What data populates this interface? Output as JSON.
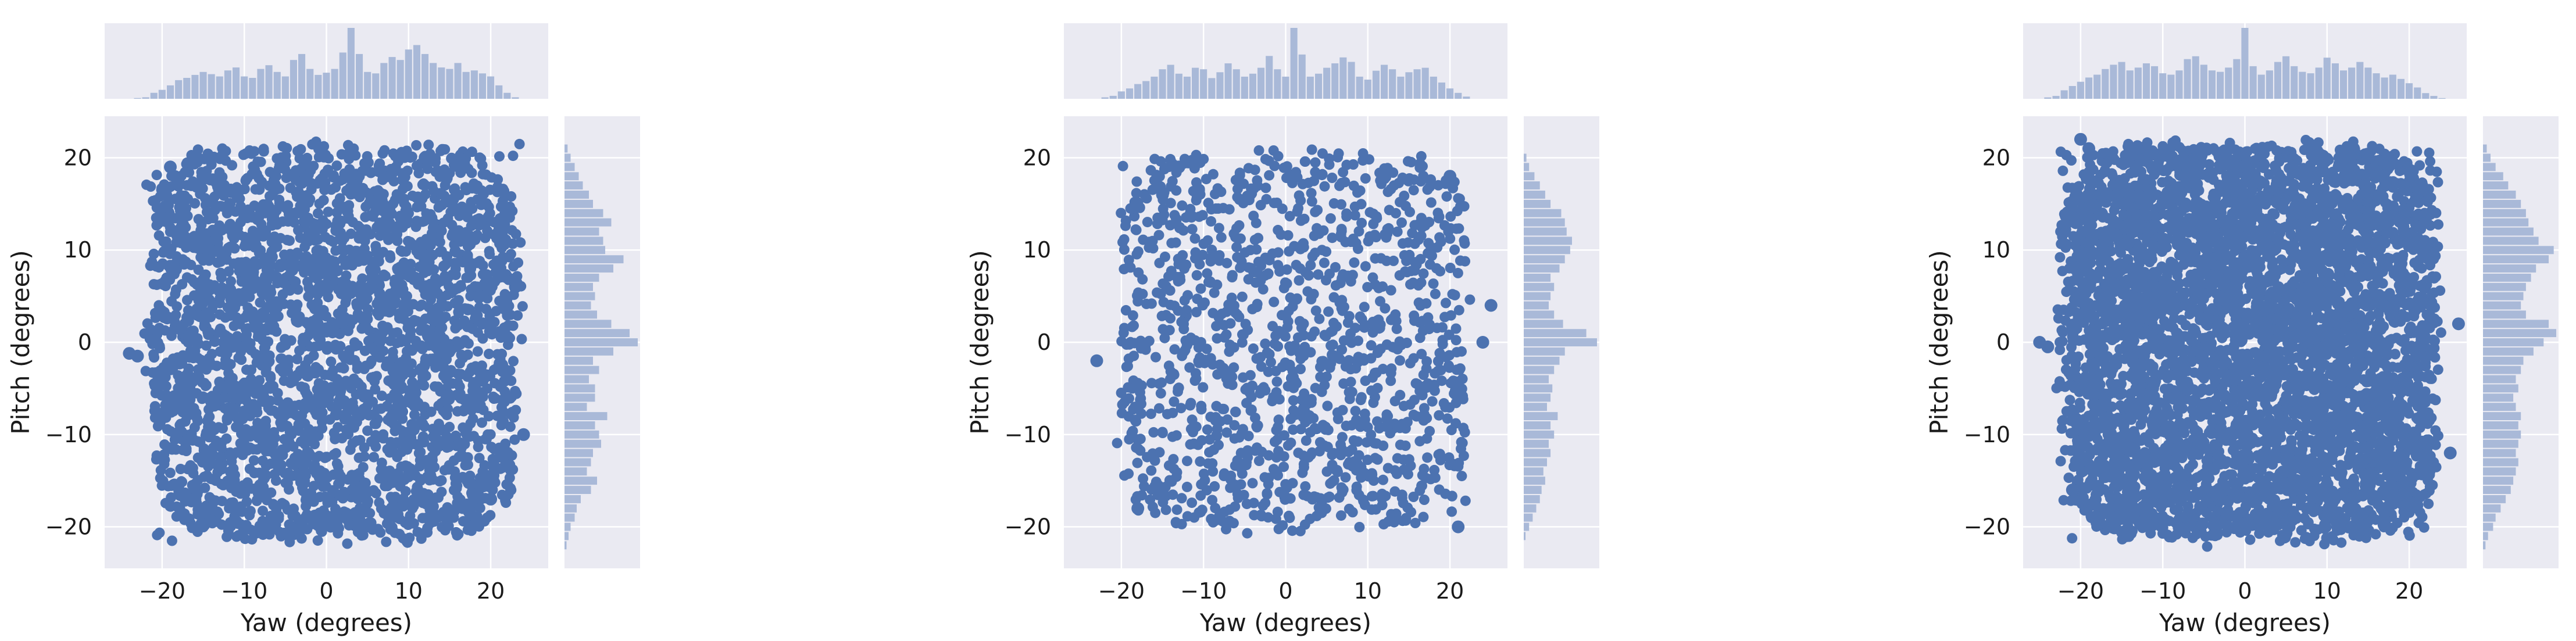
{
  "figure": {
    "background": "#ffffff",
    "panel_bg": "#eaeaf2",
    "grid": "#ffffff",
    "point_color": "#4c72b0",
    "hist_color": "#a9b9d8"
  },
  "chart_data": [
    {
      "type": "scatter",
      "subtype": "jointplot-with-marginal-histograms",
      "xlabel": "Yaw (degrees)",
      "ylabel": "Pitch (degrees)",
      "xlim": [
        -27,
        27
      ],
      "ylim": [
        -24.5,
        24.5
      ],
      "xticks": [
        -20,
        -10,
        0,
        10,
        20
      ],
      "yticks": [
        -20,
        -10,
        0,
        10,
        20
      ],
      "grid": true,
      "point_cloud": {
        "x_range": [
          -22,
          24
        ],
        "y_range": [
          -22,
          22
        ],
        "points_shown": 3200,
        "density": "dense"
      },
      "outliers": [
        [
          -24,
          -1.2
        ],
        [
          -23,
          -1.5
        ],
        [
          24,
          -10
        ],
        [
          22,
          -12
        ],
        [
          -19,
          19
        ],
        [
          12,
          20
        ],
        [
          -16,
          -17
        ],
        [
          -14,
          -18
        ],
        [
          20,
          -17
        ],
        [
          23,
          6
        ]
      ],
      "marginal_x": {
        "bins_center": [
          -23,
          -22,
          -21,
          -20,
          -19,
          -18,
          -17,
          -16,
          -15,
          -14,
          -13,
          -12,
          -11,
          -10,
          -9,
          -8,
          -7,
          -6,
          -5,
          -4,
          -3,
          -2,
          -1,
          0,
          1,
          2,
          3,
          4,
          5,
          6,
          7,
          8,
          9,
          10,
          11,
          12,
          13,
          14,
          15,
          16,
          17,
          18,
          19,
          20,
          21,
          22,
          23
        ],
        "counts": [
          1,
          2,
          8,
          12,
          18,
          25,
          28,
          32,
          36,
          33,
          30,
          38,
          42,
          30,
          28,
          40,
          45,
          36,
          30,
          52,
          60,
          40,
          32,
          35,
          40,
          62,
          95,
          60,
          36,
          34,
          48,
          56,
          52,
          66,
          72,
          60,
          48,
          42,
          40,
          48,
          36,
          38,
          34,
          30,
          18,
          8,
          2
        ]
      },
      "marginal_y": {
        "bins_center": [
          -22,
          -21,
          -20,
          -19,
          -18,
          -17,
          -16,
          -15,
          -14,
          -13,
          -12,
          -11,
          -10,
          -9,
          -8,
          -7,
          -6,
          -5,
          -4,
          -3,
          -2,
          -1,
          0,
          1,
          2,
          3,
          4,
          5,
          6,
          7,
          8,
          9,
          10,
          11,
          12,
          13,
          14,
          15,
          16,
          17,
          18,
          19,
          20,
          21
        ],
        "counts": [
          2,
          4,
          6,
          10,
          12,
          16,
          26,
          32,
          22,
          26,
          28,
          36,
          34,
          30,
          42,
          22,
          30,
          30,
          24,
          34,
          28,
          48,
          72,
          64,
          46,
          32,
          26,
          30,
          28,
          34,
          48,
          58,
          40,
          38,
          34,
          46,
          38,
          28,
          24,
          18,
          14,
          10,
          6,
          3
        ]
      }
    },
    {
      "type": "scatter",
      "subtype": "jointplot-with-marginal-histograms",
      "xlabel": "Yaw (degrees)",
      "ylabel": "Pitch (degrees)",
      "xlim": [
        -27,
        27
      ],
      "ylim": [
        -24.5,
        24.5
      ],
      "xticks": [
        -20,
        -10,
        0,
        10,
        20
      ],
      "yticks": [
        -20,
        -10,
        0,
        10,
        20
      ],
      "grid": true,
      "point_cloud": {
        "x_range": [
          -21,
          23
        ],
        "y_range": [
          -21,
          21
        ],
        "points_shown": 1800,
        "density": "medium"
      },
      "outliers": [
        [
          -23,
          -2
        ],
        [
          24,
          0
        ],
        [
          25,
          4
        ],
        [
          -18,
          -18
        ],
        [
          21,
          -20
        ],
        [
          20,
          18
        ],
        [
          -13,
          19
        ],
        [
          -15,
          16
        ]
      ],
      "marginal_x": {
        "bins_center": [
          -22,
          -21,
          -20,
          -19,
          -18,
          -17,
          -16,
          -15,
          -14,
          -13,
          -12,
          -11,
          -10,
          -9,
          -8,
          -7,
          -6,
          -5,
          -4,
          -3,
          -2,
          -1,
          0,
          1,
          2,
          3,
          4,
          5,
          6,
          7,
          8,
          9,
          10,
          11,
          12,
          13,
          14,
          15,
          16,
          17,
          18,
          19,
          20,
          21,
          22
        ],
        "counts": [
          2,
          4,
          10,
          14,
          20,
          24,
          30,
          40,
          46,
          34,
          30,
          42,
          40,
          28,
          36,
          48,
          40,
          30,
          34,
          42,
          58,
          40,
          30,
          96,
          60,
          30,
          34,
          42,
          48,
          56,
          50,
          30,
          26,
          38,
          46,
          40,
          30,
          36,
          40,
          42,
          30,
          22,
          14,
          8,
          3
        ]
      },
      "marginal_y": {
        "bins_center": [
          -21,
          -20,
          -19,
          -18,
          -17,
          -16,
          -15,
          -14,
          -13,
          -12,
          -11,
          -10,
          -9,
          -8,
          -7,
          -6,
          -5,
          -4,
          -3,
          -2,
          -1,
          0,
          1,
          2,
          3,
          4,
          5,
          6,
          7,
          8,
          9,
          10,
          11,
          12,
          13,
          14,
          15,
          16,
          17,
          18,
          19,
          20
        ],
        "counts": [
          2,
          6,
          10,
          14,
          18,
          20,
          24,
          22,
          26,
          30,
          28,
          34,
          30,
          38,
          26,
          30,
          32,
          28,
          34,
          40,
          46,
          82,
          70,
          44,
          34,
          28,
          30,
          34,
          30,
          40,
          46,
          52,
          54,
          48,
          46,
          42,
          30,
          24,
          18,
          12,
          6,
          3
        ]
      }
    },
    {
      "type": "scatter",
      "subtype": "jointplot-with-marginal-histograms",
      "xlabel": "Yaw (degrees)",
      "ylabel": "Pitch (degrees)",
      "xlim": [
        -27,
        27
      ],
      "ylim": [
        -24.5,
        24.5
      ],
      "xticks": [
        -20,
        -10,
        0,
        10,
        20
      ],
      "yticks": [
        -20,
        -10,
        0,
        10,
        20
      ],
      "grid": true,
      "point_cloud": {
        "x_range": [
          -23,
          24
        ],
        "y_range": [
          -22,
          22
        ],
        "points_shown": 5200,
        "density": "very dense"
      },
      "outliers": [
        [
          -25,
          0
        ],
        [
          -24,
          -0.5
        ],
        [
          -20,
          22
        ],
        [
          -19,
          21
        ],
        [
          15,
          20
        ],
        [
          13,
          21
        ],
        [
          26,
          2
        ],
        [
          25,
          -12
        ],
        [
          -21,
          -16
        ],
        [
          -18,
          -19
        ]
      ],
      "marginal_x": {
        "bins_center": [
          -24,
          -23,
          -22,
          -21,
          -20,
          -19,
          -18,
          -17,
          -16,
          -15,
          -14,
          -13,
          -12,
          -11,
          -10,
          -9,
          -8,
          -7,
          -6,
          -5,
          -4,
          -3,
          -2,
          -1,
          0,
          1,
          2,
          3,
          4,
          5,
          6,
          7,
          8,
          9,
          10,
          11,
          12,
          13,
          14,
          15,
          16,
          17,
          18,
          19,
          20,
          21,
          22,
          23,
          24
        ],
        "counts": [
          2,
          4,
          12,
          18,
          24,
          30,
          34,
          42,
          48,
          52,
          40,
          44,
          50,
          46,
          36,
          34,
          40,
          56,
          60,
          48,
          40,
          38,
          44,
          56,
          100,
          46,
          34,
          40,
          52,
          60,
          46,
          38,
          36,
          44,
          58,
          50,
          40,
          44,
          52,
          44,
          36,
          30,
          34,
          28,
          22,
          16,
          8,
          4,
          1
        ]
      },
      "marginal_y": {
        "bins_center": [
          -22,
          -21,
          -20,
          -19,
          -18,
          -17,
          -16,
          -15,
          -14,
          -13,
          -12,
          -11,
          -10,
          -9,
          -8,
          -7,
          -6,
          -5,
          -4,
          -3,
          -2,
          -1,
          0,
          1,
          2,
          3,
          4,
          5,
          6,
          7,
          8,
          9,
          10,
          11,
          12,
          13,
          14,
          15,
          16,
          17,
          18,
          19,
          20,
          21
        ],
        "counts": [
          2,
          4,
          8,
          10,
          14,
          18,
          22,
          24,
          26,
          28,
          26,
          28,
          30,
          28,
          30,
          26,
          24,
          28,
          26,
          30,
          32,
          40,
          48,
          58,
          52,
          34,
          30,
          32,
          34,
          38,
          42,
          52,
          56,
          44,
          40,
          36,
          34,
          30,
          26,
          20,
          16,
          10,
          6,
          3
        ]
      }
    }
  ]
}
